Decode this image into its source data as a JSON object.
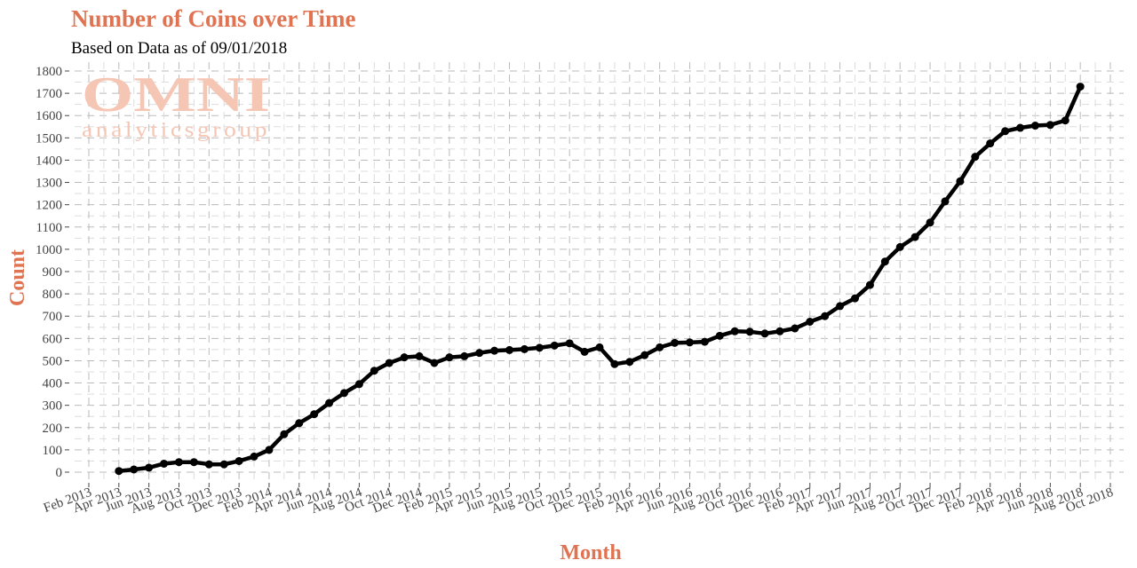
{
  "chart_data": {
    "type": "line",
    "title": "Number of Coins over Time",
    "subtitle": "Based on Data as of 09/01/2018",
    "xlabel": "Month",
    "ylabel": "Count",
    "watermark": {
      "top": "OMNI",
      "bottom": "analyticsgroup"
    },
    "color": "#000000",
    "title_color": "#e07352",
    "grid": true,
    "x": [
      "Apr 2013",
      "May 2013",
      "Jun 2013",
      "Jul 2013",
      "Aug 2013",
      "Sep 2013",
      "Oct 2013",
      "Nov 2013",
      "Dec 2013",
      "Jan 2014",
      "Feb 2014",
      "Mar 2014",
      "Apr 2014",
      "May 2014",
      "Jun 2014",
      "Jul 2014",
      "Aug 2014",
      "Sep 2014",
      "Oct 2014",
      "Nov 2014",
      "Dec 2014",
      "Jan 2015",
      "Feb 2015",
      "Mar 2015",
      "Apr 2015",
      "May 2015",
      "Jun 2015",
      "Jul 2015",
      "Aug 2015",
      "Sep 2015",
      "Oct 2015",
      "Nov 2015",
      "Dec 2015",
      "Jan 2016",
      "Feb 2016",
      "Mar 2016",
      "Apr 2016",
      "May 2016",
      "Jun 2016",
      "Jul 2016",
      "Aug 2016",
      "Sep 2016",
      "Oct 2016",
      "Nov 2016",
      "Dec 2016",
      "Jan 2017",
      "Feb 2017",
      "Mar 2017",
      "Apr 2017",
      "May 2017",
      "Jun 2017",
      "Jul 2017",
      "Aug 2017",
      "Sep 2017",
      "Oct 2017",
      "Nov 2017",
      "Dec 2017",
      "Jan 2018",
      "Feb 2018",
      "Mar 2018",
      "Apr 2018",
      "May 2018",
      "Jun 2018",
      "Jul 2018",
      "Aug 2018"
    ],
    "values": [
      5,
      12,
      20,
      38,
      45,
      45,
      35,
      35,
      50,
      70,
      100,
      170,
      220,
      260,
      310,
      355,
      395,
      455,
      490,
      515,
      520,
      490,
      515,
      520,
      535,
      545,
      548,
      552,
      558,
      568,
      578,
      540,
      560,
      485,
      495,
      525,
      560,
      580,
      582,
      585,
      612,
      632,
      630,
      622,
      632,
      645,
      675,
      700,
      745,
      780,
      840,
      945,
      1010,
      1055,
      1120,
      1215,
      1305,
      1415,
      1475,
      1530,
      1545,
      1555,
      1558,
      1578,
      1730
    ],
    "xlim": [
      "Feb 2013",
      "Oct 2018"
    ],
    "xticks": [
      "Feb 2013",
      "Apr 2013",
      "Jun 2013",
      "Aug 2013",
      "Oct 2013",
      "Dec 2013",
      "Feb 2014",
      "Apr 2014",
      "Jun 2014",
      "Aug 2014",
      "Oct 2014",
      "Dec 2014",
      "Feb 2015",
      "Apr 2015",
      "Jun 2015",
      "Aug 2015",
      "Oct 2015",
      "Dec 2015",
      "Feb 2016",
      "Apr 2016",
      "Jun 2016",
      "Aug 2016",
      "Oct 2016",
      "Dec 2016",
      "Feb 2017",
      "Apr 2017",
      "Jun 2017",
      "Aug 2017",
      "Oct 2017",
      "Dec 2017",
      "Feb 2018",
      "Apr 2018",
      "Jun 2018",
      "Aug 2018",
      "Oct 2018"
    ],
    "ylim": [
      0,
      1800
    ],
    "yticks": [
      0,
      100,
      200,
      300,
      400,
      500,
      600,
      700,
      800,
      900,
      1000,
      1100,
      1200,
      1300,
      1400,
      1500,
      1600,
      1700,
      1800
    ]
  }
}
